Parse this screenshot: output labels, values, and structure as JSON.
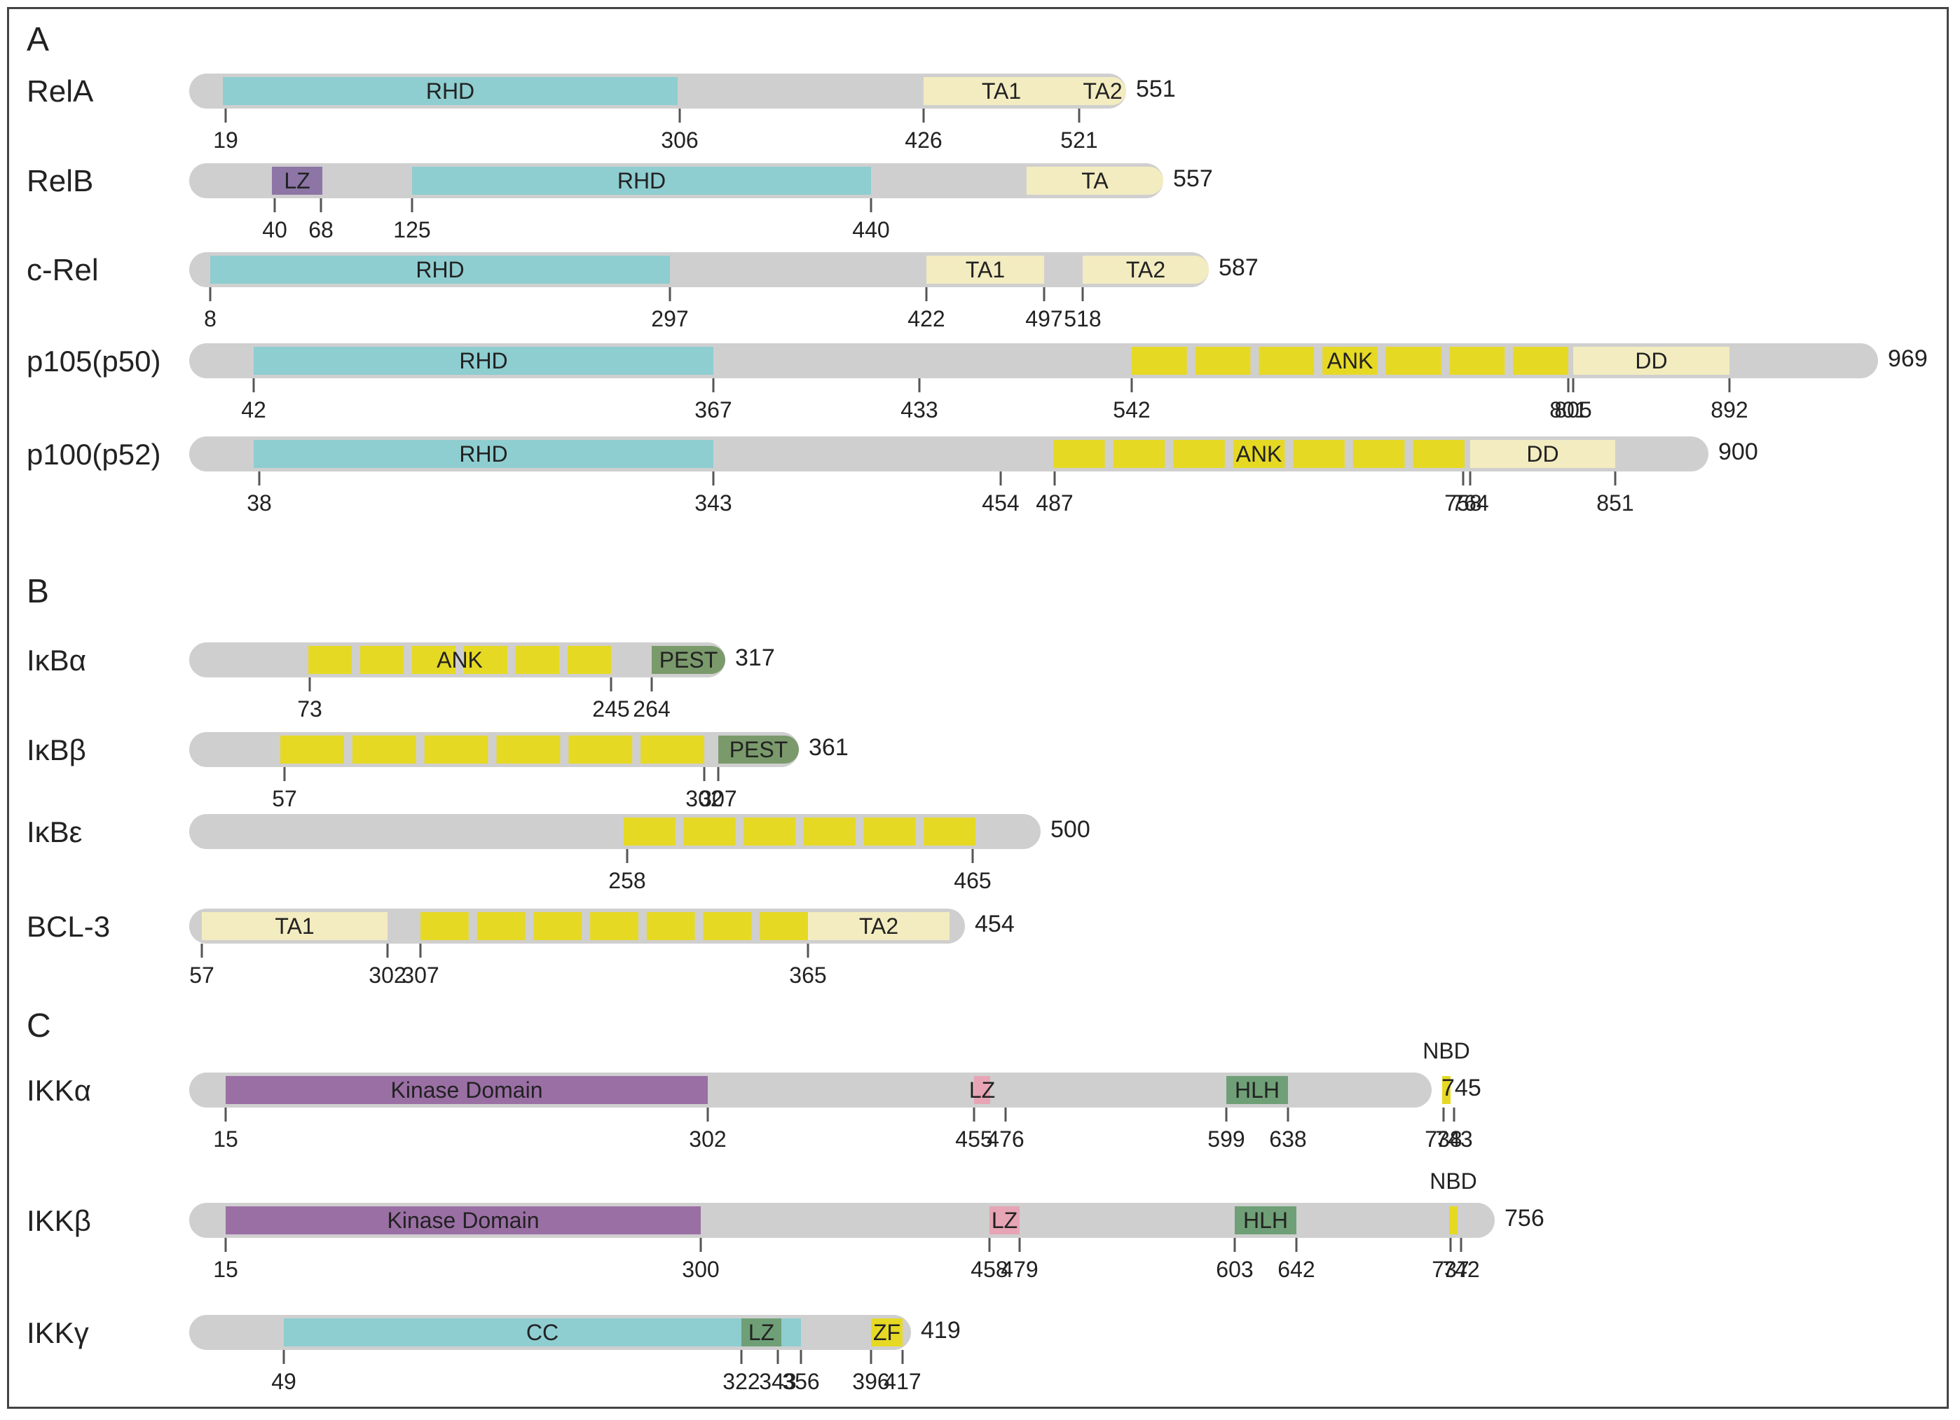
{
  "colors": {
    "backbone": "#cfcfcf",
    "rhd": "#8ecdd0",
    "ta": "#f3ecc0",
    "ank": "#e6d924",
    "lz_purple": "#8d75a6",
    "kinase": "#9a6fa4",
    "pest": "#7a9a6b",
    "lz_pink": "#e6a4b4",
    "hlh": "#6f9f76",
    "cc": "#8ecdd0",
    "zf": "#e6d924",
    "nbd": "#e6d924",
    "tick": "#555555",
    "text": "#222222"
  },
  "sections": [
    {
      "label": "A"
    },
    {
      "label": "B"
    },
    {
      "label": "C"
    }
  ],
  "proteins": [
    {
      "name": "RelA",
      "length": "551",
      "domains": [
        {
          "start": 19,
          "end": 306,
          "color": "rhd",
          "label": "RHD"
        },
        {
          "start": 426,
          "end": 521,
          "color": "ta",
          "label": "TA1"
        },
        {
          "start": 521,
          "end": 551,
          "color": "ta",
          "label": "TA2"
        }
      ],
      "ticks": [
        "19",
        "306",
        "426",
        "521"
      ]
    },
    {
      "name": "RelB",
      "length": "557",
      "domains": [
        {
          "start": 40,
          "end": 68,
          "color": "lz_purple",
          "label": "LZ"
        },
        {
          "start": 125,
          "end": 440,
          "color": "rhd",
          "label": "RHD"
        },
        {
          "start": 480,
          "end": 557,
          "color": "ta",
          "label": "TA"
        }
      ],
      "ticks": [
        "40",
        "68",
        "125",
        "440"
      ]
    },
    {
      "name": "c-Rel",
      "length": "587",
      "domains": [
        {
          "start": 8,
          "end": 297,
          "color": "rhd",
          "label": "RHD"
        },
        {
          "start": 422,
          "end": 497,
          "color": "ta",
          "label": "TA1"
        },
        {
          "start": 518,
          "end": 587,
          "color": "ta",
          "label": "TA2"
        }
      ],
      "ticks": [
        "8",
        "297",
        "422",
        "497",
        "518"
      ]
    },
    {
      "name": "p105(p50)",
      "length": "969",
      "domains": [
        {
          "start": 42,
          "end": 367,
          "color": "rhd",
          "label": "RHD"
        },
        {
          "start": 542,
          "end": 801,
          "color": "ank",
          "label": "ANK",
          "repeats": 7
        },
        {
          "start": 805,
          "end": 892,
          "color": "ta",
          "label": "DD"
        }
      ],
      "ticks": [
        "42",
        "367",
        "433",
        "542",
        "801",
        "805",
        "892"
      ]
    },
    {
      "name": "p100(p52)",
      "length": "900",
      "domains": [
        {
          "start": 38,
          "end": 343,
          "color": "rhd",
          "label": "RHD"
        },
        {
          "start": 487,
          "end": 758,
          "color": "ank",
          "label": "ANK",
          "repeats": 7
        },
        {
          "start": 764,
          "end": 851,
          "color": "ta",
          "label": "DD"
        }
      ],
      "ticks": [
        "38",
        "343",
        "454",
        "487",
        "758",
        "764",
        "851"
      ]
    },
    {
      "name": "IκBα",
      "length": "317",
      "domains": [
        {
          "start": 73,
          "end": 245,
          "color": "ank",
          "label": "ANK",
          "repeats": 6
        },
        {
          "start": 264,
          "end": 317,
          "color": "pest",
          "label": "PEST"
        }
      ],
      "ticks": [
        "73",
        "245",
        "264"
      ]
    },
    {
      "name": "IκBβ",
      "length": "361",
      "domains": [
        {
          "start": 57,
          "end": 302,
          "color": "ank",
          "label": "",
          "repeats": 6
        },
        {
          "start": 307,
          "end": 361,
          "color": "pest",
          "label": "PEST"
        }
      ],
      "ticks": [
        "57",
        "302",
        "307"
      ]
    },
    {
      "name": "IκBε",
      "length": "500",
      "domains": [
        {
          "start": 258,
          "end": 465,
          "color": "ank",
          "label": "",
          "repeats": 6
        }
      ],
      "ticks": [
        "258",
        "465"
      ]
    },
    {
      "name": "BCL-3",
      "length": "454",
      "domains": [
        {
          "start": 57,
          "end": 302,
          "color": "ta",
          "label": "TA1"
        },
        {
          "start": 307,
          "end": 365,
          "color": "ank",
          "label": "",
          "repeats": 7
        },
        {
          "start": 365,
          "end": 454,
          "color": "ta",
          "label": "TA2"
        }
      ],
      "ticks": [
        "57",
        "302",
        "307",
        "365"
      ]
    },
    {
      "name": "IKKα",
      "length": "745",
      "domains": [
        {
          "start": 15,
          "end": 302,
          "color": "kinase",
          "label": "Kinase Domain"
        },
        {
          "start": 455,
          "end": 476,
          "color": "lz_pink",
          "label": "LZ"
        },
        {
          "start": 599,
          "end": 638,
          "color": "hlh",
          "label": "HLH"
        },
        {
          "start": 738,
          "end": 743,
          "color": "nbd",
          "label": ""
        }
      ],
      "above_label": "NBD",
      "ticks": [
        "15",
        "302",
        "455",
        "476",
        "599",
        "638",
        "738",
        "743"
      ]
    },
    {
      "name": "IKKβ",
      "length": "756",
      "domains": [
        {
          "start": 15,
          "end": 300,
          "color": "kinase",
          "label": "Kinase Domain"
        },
        {
          "start": 458,
          "end": 479,
          "color": "lz_pink",
          "label": "LZ"
        },
        {
          "start": 603,
          "end": 642,
          "color": "hlh",
          "label": "HLH"
        },
        {
          "start": 737,
          "end": 742,
          "color": "nbd",
          "label": ""
        }
      ],
      "above_label": "NBD",
      "ticks": [
        "15",
        "300",
        "458",
        "479",
        "603",
        "642",
        "737",
        "742"
      ]
    },
    {
      "name": "IKKγ",
      "length": "419",
      "domains": [
        {
          "start": 49,
          "end": 356,
          "color": "cc",
          "label": "CC"
        },
        {
          "start": 322,
          "end": 343,
          "color": "hlh",
          "label": "LZ"
        },
        {
          "start": 396,
          "end": 417,
          "color": "zf",
          "label": "ZF"
        }
      ],
      "ticks": [
        "49",
        "322",
        "343",
        "356",
        "396",
        "417"
      ]
    }
  ]
}
